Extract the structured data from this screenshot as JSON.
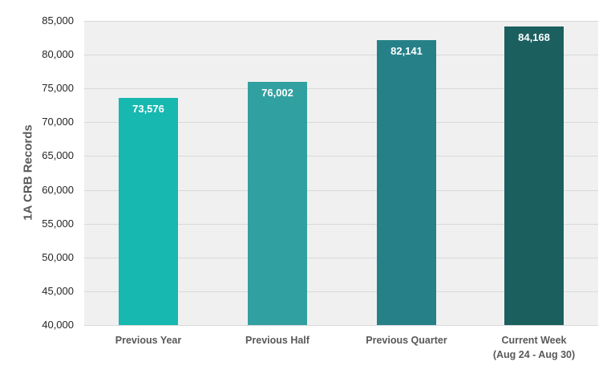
{
  "chart_data": {
    "type": "bar",
    "title": "",
    "xlabel": "",
    "ylabel": "1A CRB Records",
    "ylim": [
      40000,
      85000
    ],
    "yticks": [
      "40,000",
      "45,000",
      "50,000",
      "55,000",
      "60,000",
      "65,000",
      "70,000",
      "75,000",
      "80,000",
      "85,000"
    ],
    "categories": [
      "Previous Year",
      "Previous Half",
      "Previous Quarter",
      "Current Week"
    ],
    "category_sublabels": [
      "",
      "",
      "",
      "(Aug 24 - Aug 30)"
    ],
    "values": [
      73576,
      76002,
      82141,
      84168
    ],
    "value_labels": [
      "73,576",
      "76,002",
      "82,141",
      "84,168"
    ],
    "colors": [
      "#17b8b0",
      "#31a0a0",
      "#268088",
      "#1b5f5e"
    ],
    "grid": true,
    "legend": null
  }
}
